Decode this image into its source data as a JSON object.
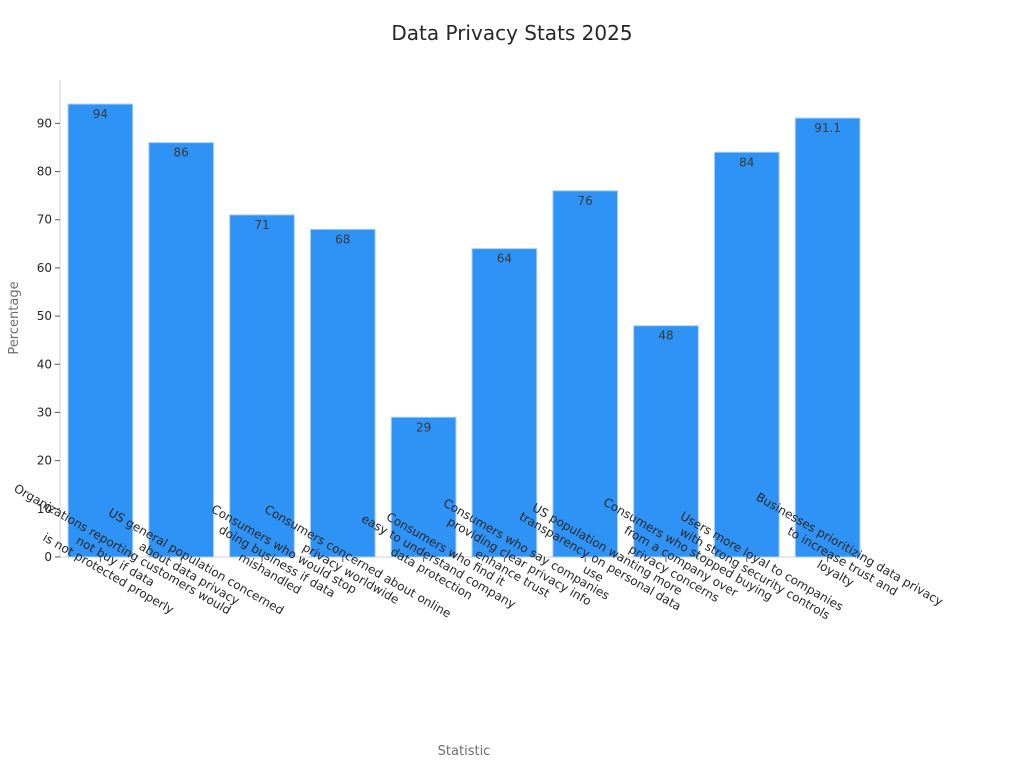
{
  "chart_data": {
    "type": "bar",
    "title": "Data Privacy Stats 2025",
    "xlabel": "Statistic",
    "ylabel": "Percentage",
    "ylim": [
      0,
      99
    ],
    "yticks": [
      0,
      10,
      20,
      30,
      40,
      50,
      60,
      70,
      80,
      90
    ],
    "grid": false,
    "legend": "none",
    "bar_color": "#2e93f5",
    "bar_edge_color": "#a8cdf2",
    "categories": [
      [
        "Organizations reporting customers would",
        "not buy if data",
        "is not protected properly"
      ],
      [
        "US general population concerned",
        "about data privacy"
      ],
      [
        "Consumers who would stop",
        "doing business if data",
        "mishandled"
      ],
      [
        "Consumers concerned about online",
        "privacy worldwide"
      ],
      [
        "Consumers who find it",
        "easy to understand company",
        "data protection"
      ],
      [
        "Consumers who say companies",
        "providing clear privacy info",
        "enhance trust"
      ],
      [
        "US population wanting more",
        "transparency on personal data",
        "use"
      ],
      [
        "Consumers who stopped buying",
        "from a company over",
        "privacy concerns"
      ],
      [
        "Users more loyal to companies",
        "with strong security controls"
      ],
      [
        "Businesses prioritizing data privacy",
        "to increase trust and",
        "loyalty"
      ]
    ],
    "values": [
      94,
      86,
      71,
      68,
      29,
      64,
      76,
      48,
      84,
      91.1
    ],
    "value_labels": [
      "94",
      "86",
      "71",
      "68",
      "29",
      "64",
      "76",
      "48",
      "84",
      "91.1"
    ]
  }
}
